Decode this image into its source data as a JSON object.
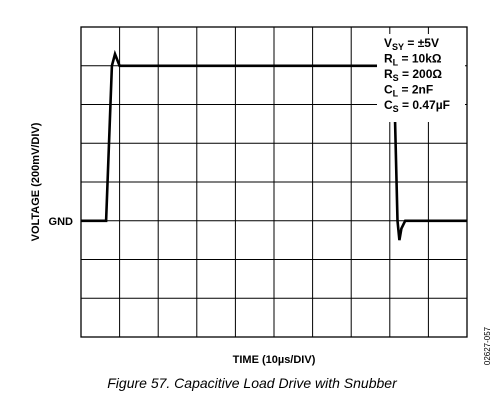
{
  "chart_data": {
    "type": "line",
    "title": "",
    "xlabel": "TIME (10µs/DIV)",
    "ylabel": "VOLTAGE (200mV/DIV)",
    "x_divisions": 10,
    "y_divisions": 8,
    "xlim": [
      0,
      100
    ],
    "ylim": [
      -600,
      1000
    ],
    "grid": true,
    "reference_marker": {
      "label": "GND",
      "value": 0
    },
    "series": [
      {
        "name": "",
        "x": [
          0,
          6.5,
          8.0,
          8.8,
          10.0,
          81.0,
          82.0,
          82.5,
          83.0,
          84.0,
          100
        ],
        "y": [
          0,
          0,
          800,
          860,
          800,
          800,
          0,
          -100,
          -40,
          0,
          0
        ]
      }
    ],
    "annotations": [
      {
        "main": "V",
        "sub": "SY",
        "rest": " = ±5V"
      },
      {
        "main": "R",
        "sub": "L",
        "rest": " = 10kΩ"
      },
      {
        "main": "R",
        "sub": "S",
        "rest": " = 200Ω"
      },
      {
        "main": "C",
        "sub": "L",
        "rest": " = 2nF"
      },
      {
        "main": "C",
        "sub": "S",
        "rest": " = 0.47µF"
      }
    ]
  },
  "figure_caption": "Figure 57. Capacitive Load Drive with Snubber",
  "figure_id": "02627-057"
}
